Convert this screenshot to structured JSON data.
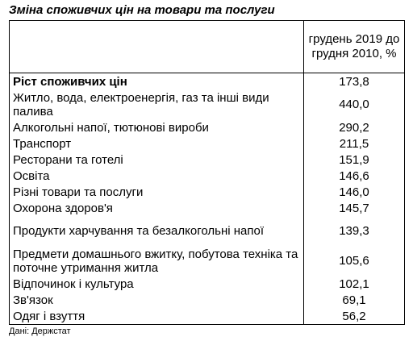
{
  "title": "Зміна споживчих цін на товари та послуги",
  "table": {
    "header_label": "",
    "header_value": "грудень 2019 до грудня 2010, %",
    "rows": [
      {
        "label": "Ріст споживчих цін",
        "value": "173,8"
      },
      {
        "label": "Житло, вода, електроенергія, газ та інші види палива",
        "value": "440,0"
      },
      {
        "label": "Алкогольні напої, тютюнові вироби",
        "value": "290,2"
      },
      {
        "label": "Транспорт",
        "value": "211,5"
      },
      {
        "label": "Ресторани та готелі",
        "value": "151,9"
      },
      {
        "label": "Освіта",
        "value": "146,6"
      },
      {
        "label": "Різні товари та послуги",
        "value": "146,0"
      },
      {
        "label": "Охорона здоров'я",
        "value": "145,7"
      },
      {
        "label": "Продукти харчування та безалкогольні напої",
        "value": "139,3"
      },
      {
        "label": "Предмети домашнього вжитку, побутова техніка та поточне утримання житла",
        "value": "105,6"
      },
      {
        "label": "Відпочинок і культура",
        "value": "102,1"
      },
      {
        "label": "Зв'язок",
        "value": "69,1"
      },
      {
        "label": "Одяг і взуття",
        "value": "56,2"
      }
    ]
  },
  "source": "Дані: Держстат"
}
